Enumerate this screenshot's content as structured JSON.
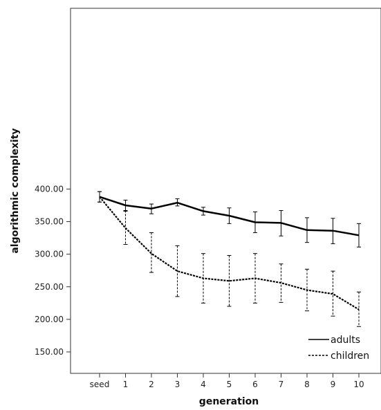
{
  "chart_data": {
    "type": "line",
    "xlabel": "generation",
    "ylabel": "algorithmic complexity",
    "categories": [
      "seed",
      "1",
      "2",
      "3",
      "4",
      "5",
      "6",
      "7",
      "8",
      "9",
      "10"
    ],
    "yticks": [
      "150.00",
      "200.00",
      "250.00",
      "300.00",
      "350.00",
      "400.00"
    ],
    "ytick_values": [
      150,
      200,
      250,
      300,
      350,
      400
    ],
    "ylim": [
      140,
      413
    ],
    "grid": false,
    "legend_position": "bottom-right",
    "series": [
      {
        "name": "adults",
        "line_style": "solid",
        "color": "#000000",
        "values": [
          388,
          375,
          370,
          379,
          366,
          359,
          349,
          348,
          337,
          336,
          329
        ],
        "err_upper": [
          396,
          383,
          377,
          385,
          372,
          371,
          365,
          367,
          356,
          355,
          347
        ],
        "err_lower": [
          380,
          366,
          362,
          374,
          360,
          347,
          333,
          328,
          318,
          316,
          311
        ]
      },
      {
        "name": "children",
        "line_style": "dashed",
        "color": "#000000",
        "values": [
          388,
          340,
          301,
          274,
          263,
          259,
          263,
          256,
          245,
          239,
          215
        ],
        "err_upper": [
          396,
          367,
          333,
          313,
          301,
          298,
          301,
          285,
          277,
          274,
          242
        ],
        "err_lower": [
          380,
          315,
          272,
          235,
          225,
          220,
          225,
          226,
          213,
          205,
          189
        ]
      }
    ]
  }
}
